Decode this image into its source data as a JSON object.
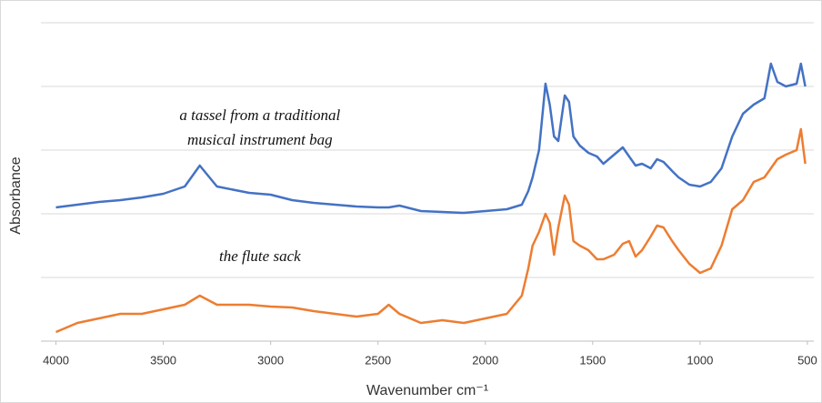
{
  "chart_data": {
    "type": "line",
    "xlabel": "Wavenumber  cm⁻¹",
    "ylabel": "Absorbance",
    "annotations": [
      {
        "text": "a tassel from a traditional",
        "x": 3050,
        "y": 247
      },
      {
        "text": "musical instrument bag",
        "x": 3050,
        "y": 220
      },
      {
        "text": "the flute sack",
        "x": 3050,
        "y": 92
      }
    ],
    "x": [
      4000,
      3900,
      3800,
      3700,
      3600,
      3500,
      3400,
      3330,
      3250,
      3100,
      3000,
      2900,
      2800,
      2700,
      2600,
      2500,
      2450,
      2400,
      2300,
      2200,
      2100,
      2000,
      1900,
      1830,
      1800,
      1780,
      1750,
      1720,
      1700,
      1680,
      1660,
      1630,
      1610,
      1590,
      1560,
      1520,
      1480,
      1450,
      1400,
      1360,
      1330,
      1300,
      1270,
      1230,
      1200,
      1170,
      1130,
      1100,
      1050,
      1000,
      950,
      900,
      850,
      800,
      750,
      700,
      670,
      640,
      600,
      550,
      530,
      510
    ],
    "series": [
      {
        "name": null,
        "color": "#4472c4",
        "values": [
          147,
          150,
          153,
          155,
          158,
          162,
          170,
          193,
          170,
          163,
          161,
          155,
          152,
          150,
          148,
          147,
          147,
          149,
          143,
          142,
          141,
          143,
          145,
          150,
          165,
          180,
          210,
          283,
          260,
          225,
          220,
          270,
          263,
          225,
          215,
          207,
          203,
          195,
          205,
          213,
          203,
          193,
          195,
          190,
          200,
          197,
          187,
          180,
          172,
          170,
          175,
          190,
          225,
          250,
          260,
          267,
          305,
          285,
          280,
          283,
          305,
          280
        ]
      },
      {
        "name": null,
        "color": "#ed7d31",
        "values": [
          10,
          20,
          25,
          30,
          30,
          35,
          40,
          50,
          40,
          40,
          38,
          37,
          33,
          30,
          27,
          30,
          40,
          30,
          20,
          23,
          20,
          25,
          30,
          50,
          80,
          105,
          120,
          140,
          130,
          95,
          125,
          160,
          150,
          110,
          105,
          100,
          90,
          90,
          95,
          107,
          110,
          93,
          100,
          115,
          127,
          125,
          110,
          100,
          85,
          75,
          80,
          105,
          145,
          155,
          175,
          180,
          190,
          200,
          205,
          210,
          233,
          195
        ]
      }
    ],
    "xlim": [
      4070,
      470
    ],
    "xticks": [
      4000,
      3500,
      3000,
      2500,
      2000,
      1500,
      1000,
      500
    ],
    "ylim": [
      0,
      367
    ],
    "yticks": [
      0,
      70,
      140,
      210,
      280,
      350
    ],
    "grid": true
  }
}
